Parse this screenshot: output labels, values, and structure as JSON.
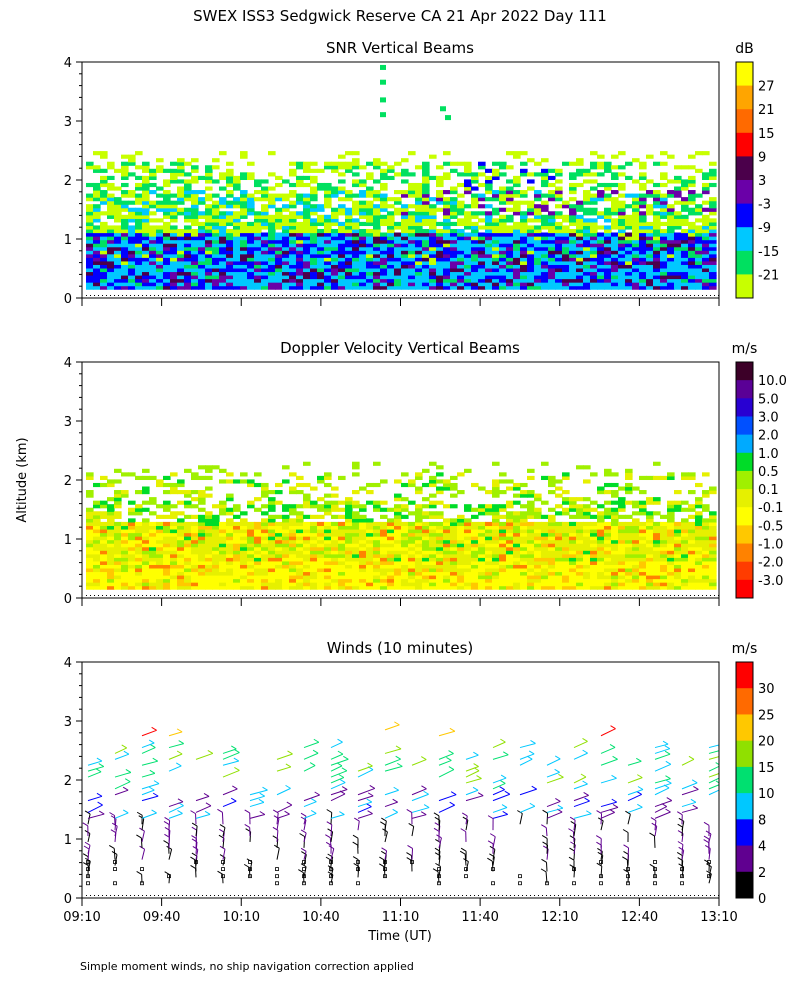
{
  "page": {
    "title": "SWEX ISS3 Sedgwick Reserve CA  21 Apr 2022 Day 111",
    "ylabel": "Altitude (km)",
    "footnote": "Simple moment winds, no ship navigation correction applied"
  },
  "chart_data": [
    {
      "type": "heatmap",
      "title": "SNR Vertical Beams",
      "ylim": [
        0,
        4
      ],
      "yticks": [
        "0",
        "1",
        "2",
        "3",
        "4"
      ],
      "colorbar": {
        "unit": "dB",
        "labels": [
          "27",
          "21",
          "15",
          "9",
          "3",
          "-3",
          "-9",
          "-15",
          "-21"
        ],
        "colors": [
          "#ffff00",
          "#ffa500",
          "#ff6a00",
          "#ff0000",
          "#4b004b",
          "#6a00a8",
          "#0000ff",
          "#00c8ff",
          "#00e060",
          "#c8ff00"
        ]
      },
      "layers": [
        {
          "range_km": [
            0.15,
            1.15
          ],
          "level": "low-SNR core (-9 to 3 dB)"
        },
        {
          "range_km": [
            1.15,
            2.4
          ],
          "level": "-21 to -9 dB"
        }
      ]
    },
    {
      "type": "heatmap",
      "title": "Doppler Velocity Vertical Beams",
      "ylim": [
        0,
        4
      ],
      "yticks": [
        "0",
        "1",
        "2",
        "3",
        "4"
      ],
      "colorbar": {
        "unit": "m/s",
        "labels": [
          "10.0",
          "5.0",
          "3.0",
          "2.0",
          "1.0",
          "0.5",
          "0.1",
          "-0.1",
          "-0.5",
          "-1.0",
          "-2.0",
          "-3.0"
        ],
        "colors": [
          "#3c0028",
          "#5a0096",
          "#2800d2",
          "#0050ff",
          "#00aaff",
          "#00dc28",
          "#a0f000",
          "#e6f000",
          "#ffff00",
          "#ffc800",
          "#ff8200",
          "#ff3c00",
          "#ff0000"
        ]
      }
    },
    {
      "type": "scatter",
      "title": "Winds (10 minutes)",
      "ylim": [
        0,
        4
      ],
      "yticks": [
        "0",
        "1",
        "2",
        "3",
        "4"
      ],
      "xlabel": "Time (UT)",
      "xticks": [
        "09:10",
        "09:40",
        "10:10",
        "10:40",
        "11:10",
        "11:40",
        "12:10",
        "12:40",
        "13:10"
      ],
      "colorbar": {
        "unit": "m/s",
        "labels": [
          "30",
          "25",
          "20",
          "15",
          "10",
          "8",
          "4",
          "2",
          "0"
        ],
        "colors": [
          "#ff0000",
          "#ff6a00",
          "#ffc800",
          "#90e000",
          "#00e070",
          "#00c8ff",
          "#0000ff",
          "#600090",
          "#000000"
        ]
      }
    }
  ]
}
